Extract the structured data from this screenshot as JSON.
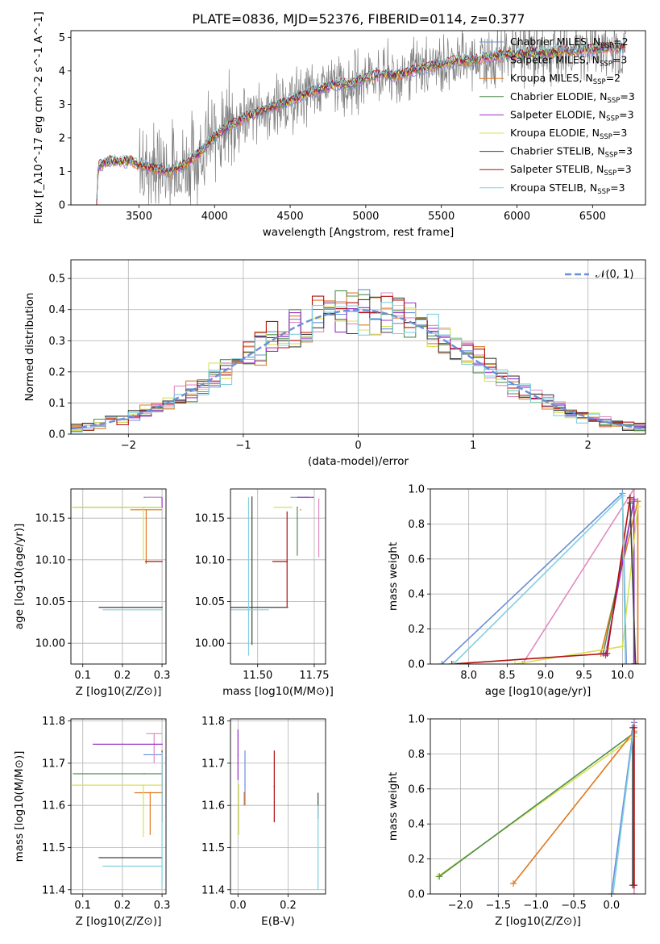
{
  "figure_title": "PLATE=0836, MJD=52376, FIBERID=0114, z=0.377",
  "palette": {
    "Chabrier MILES": "#6a8fd8",
    "Salpeter MILES": "#e08ac0",
    "Kroupa MILES": "#e07820",
    "Chabrier ELODIE": "#4f8f4f",
    "Salpeter ELODIE": "#9a30c8",
    "Kroupa ELODIE": "#d8e050",
    "Chabrier STELIB": "#404040",
    "Salpeter STELIB": "#b01010",
    "Kroupa STELIB": "#7fd0e0",
    "data": "#808080",
    "gaussian": "#6a8fd8",
    "grid": "#b0b0b0"
  },
  "chart_data": [
    {
      "id": "spectrum",
      "type": "line",
      "xlabel": "wavelength [Angstrom, rest frame]",
      "ylabel": "Flux [f_λ10^-17 erg cm^-2 s^-1 A^-1]",
      "xlim": [
        3050,
        6850
      ],
      "ylim": [
        0,
        5.2
      ],
      "xticks": [
        3500,
        4000,
        4500,
        5000,
        5500,
        6000,
        6500
      ],
      "yticks": [
        0,
        1,
        2,
        3,
        4,
        5
      ],
      "grid": false,
      "legend_position": "top-right",
      "data_x_range": [
        3220,
        6720
      ],
      "model_envelope": {
        "x": [
          3220,
          3230,
          3300,
          3450,
          3500,
          3600,
          3700,
          3800,
          3900,
          4000,
          4100,
          4200,
          4300,
          4400,
          4500,
          4600,
          4700,
          4800,
          4900,
          5000,
          5100,
          5200,
          5300,
          5400,
          5500,
          5600,
          5700,
          5800,
          5900,
          6000,
          6100,
          6200,
          6300,
          6400,
          6500,
          6600,
          6720
        ],
        "y": [
          0,
          1.15,
          1.3,
          1.3,
          1.2,
          1.1,
          1.0,
          1.2,
          1.55,
          2.05,
          2.35,
          2.6,
          2.8,
          2.95,
          3.1,
          3.3,
          3.45,
          3.6,
          3.6,
          3.8,
          3.9,
          3.85,
          4.0,
          4.1,
          4.2,
          4.3,
          4.3,
          4.4,
          4.45,
          4.5,
          4.55,
          4.55,
          4.6,
          4.6,
          4.65,
          4.7,
          4.7
        ]
      },
      "legend": [
        {
          "label": "Chabrier MILES",
          "nssp": "2"
        },
        {
          "label": "Salpeter MILES",
          "nssp": "3"
        },
        {
          "label": "Kroupa MILES",
          "nssp": "2"
        },
        {
          "label": "Chabrier ELODIE",
          "nssp": "3"
        },
        {
          "label": "Salpeter ELODIE",
          "nssp": "3"
        },
        {
          "label": "Kroupa ELODIE",
          "nssp": "3"
        },
        {
          "label": "Chabrier STELIB",
          "nssp": "3"
        },
        {
          "label": "Salpeter STELIB",
          "nssp": "3"
        },
        {
          "label": "Kroupa STELIB",
          "nssp": "3"
        }
      ]
    },
    {
      "id": "residuals",
      "type": "histogram",
      "xlabel": "(data-model)/error",
      "ylabel": "Normed distribution",
      "xlim": [
        -2.5,
        2.5
      ],
      "ylim": [
        0,
        0.56
      ],
      "xticks": [
        -2,
        -1,
        0,
        1,
        2
      ],
      "yticks": [
        0.0,
        0.1,
        0.2,
        0.3,
        0.4,
        0.5
      ],
      "grid": true,
      "legend_position": "top-right",
      "gaussian_label": "𝒩(0, 1)",
      "bin_width": 0.1
    },
    {
      "id": "age-vs-Z",
      "type": "errorbar",
      "xlabel": "Z [log10(Z/Z⊙)]",
      "ylabel": "age [log10(age/yr)]",
      "xlim": [
        0.07,
        0.31
      ],
      "ylim": [
        9.975,
        10.185
      ],
      "xticks": [
        0.1,
        0.2,
        0.3
      ],
      "yticks": [
        10.0,
        10.05,
        10.1,
        10.15
      ],
      "grid": true,
      "points": [
        {
          "model": "Chabrier MILES",
          "x": 0.255,
          "y": 10.175,
          "xerr": [
            0.0,
            0.045
          ],
          "yerr": [
            0.0,
            0.0
          ]
        },
        {
          "model": "Salpeter MILES",
          "x": 0.28,
          "y": 10.175,
          "xerr": [
            0.02,
            0.02
          ],
          "yerr": [
            0.0,
            0.0
          ]
        },
        {
          "model": "Kroupa MILES",
          "x": 0.26,
          "y": 10.16,
          "xerr": [
            0.04,
            0.04
          ],
          "yerr": [
            0.065,
            0.0
          ]
        },
        {
          "model": "Chabrier ELODIE",
          "x": 0.255,
          "y": 10.163,
          "xerr": [
            0.18,
            0.045
          ],
          "yerr": [
            0.0,
            0.0
          ]
        },
        {
          "model": "Salpeter ELODIE",
          "x": 0.3,
          "y": 10.163,
          "xerr": [
            0.0,
            0.0
          ],
          "yerr": [
            0.0,
            0.012
          ]
        },
        {
          "model": "Kroupa ELODIE",
          "x": 0.253,
          "y": 10.163,
          "xerr": [
            0.18,
            0.047
          ],
          "yerr": [
            0.063,
            0.0
          ]
        },
        {
          "model": "Chabrier STELIB",
          "x": 0.3,
          "y": 10.043,
          "xerr": [
            0.16,
            0.0
          ],
          "yerr": [
            0.0,
            0.0
          ]
        },
        {
          "model": "Salpeter STELIB",
          "x": 0.3,
          "y": 10.098,
          "xerr": [
            0.043,
            0.0
          ],
          "yerr": [
            0.0,
            0.0
          ]
        },
        {
          "model": "Kroupa STELIB",
          "x": 0.3,
          "y": 10.04,
          "xerr": [
            0.15,
            0.0
          ],
          "yerr": [
            0.0,
            0.0
          ]
        }
      ]
    },
    {
      "id": "age-vs-mass",
      "type": "errorbar",
      "xlabel": "mass [log10(M/M⊙)]",
      "ylabel": "",
      "xlim": [
        11.38,
        11.8
      ],
      "ylim": [
        9.975,
        10.185
      ],
      "xticks": [
        11.5,
        11.75
      ],
      "yticks": [
        10.0,
        10.05,
        10.1,
        10.15
      ],
      "grid": true,
      "points": [
        {
          "model": "Chabrier MILES",
          "x": 11.725,
          "y": 10.175,
          "xerr": [
            0.08,
            0.0
          ],
          "yerr": [
            0.0,
            0.0
          ]
        },
        {
          "model": "Salpeter MILES",
          "x": 11.77,
          "y": 10.173,
          "xerr": [
            0.0,
            0.0
          ],
          "yerr": [
            0.07,
            0.0
          ]
        },
        {
          "model": "Kroupa MILES",
          "x": 11.69,
          "y": 10.16,
          "xerr": [
            0.0,
            0.0
          ],
          "yerr": [
            0.0,
            0.0
          ]
        },
        {
          "model": "Chabrier ELODIE",
          "x": 11.675,
          "y": 10.163,
          "xerr": [
            0.0,
            0.0
          ],
          "yerr": [
            0.058,
            0.0
          ]
        },
        {
          "model": "Salpeter ELODIE",
          "x": 11.745,
          "y": 10.175,
          "xerr": [
            0.07,
            0.0
          ],
          "yerr": [
            0.0,
            0.0
          ]
        },
        {
          "model": "Kroupa ELODIE",
          "x": 11.65,
          "y": 10.163,
          "xerr": [
            0.08,
            0.0
          ],
          "yerr": [
            0.0,
            0.0
          ]
        },
        {
          "model": "Chabrier STELIB",
          "x": 11.475,
          "y": 10.043,
          "xerr": [
            0.095,
            0.16
          ],
          "yerr": [
            0.045,
            0.133
          ]
        },
        {
          "model": "Salpeter STELIB",
          "x": 11.63,
          "y": 10.098,
          "xerr": [
            0.065,
            0.0
          ],
          "yerr": [
            0.055,
            0.06
          ]
        },
        {
          "model": "Kroupa STELIB",
          "x": 11.46,
          "y": 10.04,
          "xerr": [
            0.09,
            0.09
          ],
          "yerr": [
            0.055,
            0.135
          ]
        }
      ]
    },
    {
      "id": "weight-vs-age",
      "type": "line",
      "xlabel": "age [log10(age/yr)]",
      "ylabel": "mass weight",
      "xlim": [
        7.5,
        10.3
      ],
      "ylim": [
        0,
        1.0
      ],
      "xticks": [
        8.0,
        8.5,
        9.0,
        9.5,
        10.0
      ],
      "yticks": [
        0.0,
        0.2,
        0.4,
        0.6,
        0.8,
        1.0
      ],
      "grid": true,
      "series": [
        {
          "model": "Chabrier MILES",
          "x": [
            7.65,
            10.0,
            10.05
          ],
          "y": [
            0.0,
            0.975,
            0.0
          ]
        },
        {
          "model": "Salpeter MILES",
          "x": [
            8.7,
            10.15,
            10.15
          ],
          "y": [
            0.0,
            1.0,
            0.0
          ]
        },
        {
          "model": "Kroupa MILES",
          "x": [
            9.72,
            10.2,
            10.2
          ],
          "y": [
            0.06,
            0.93,
            0.0
          ]
        },
        {
          "model": "Chabrier ELODIE",
          "x": [
            9.75,
            10.15,
            10.15
          ],
          "y": [
            0.06,
            0.93,
            0.0
          ]
        },
        {
          "model": "Salpeter ELODIE",
          "x": [
            9.78,
            10.15,
            10.15
          ],
          "y": [
            0.05,
            0.94,
            0.0
          ]
        },
        {
          "model": "Kroupa ELODIE",
          "x": [
            8.6,
            10.0,
            10.2
          ],
          "y": [
            0.0,
            0.1,
            0.9
          ]
        },
        {
          "model": "Chabrier STELIB",
          "x": [
            10.1,
            10.17,
            10.17
          ],
          "y": [
            0.92,
            0.0,
            0.0
          ]
        },
        {
          "model": "Salpeter STELIB",
          "x": [
            7.78,
            9.8,
            10.1
          ],
          "y": [
            0.0,
            0.06,
            0.95
          ]
        },
        {
          "model": "Kroupa STELIB",
          "x": [
            7.8,
            10.0,
            10.04
          ],
          "y": [
            0.0,
            0.96,
            0.0
          ]
        }
      ]
    },
    {
      "id": "mass-vs-Z",
      "type": "errorbar",
      "xlabel": "Z [log10(Z/Z⊙)]",
      "ylabel": "mass [log10(M/M⊙)]",
      "xlim": [
        0.07,
        0.31
      ],
      "ylim": [
        11.39,
        11.805
      ],
      "xticks": [
        0.1,
        0.2,
        0.3
      ],
      "yticks": [
        11.4,
        11.5,
        11.6,
        11.7,
        11.8
      ],
      "grid": true,
      "points": [
        {
          "model": "Chabrier MILES",
          "x": 0.255,
          "y": 11.72,
          "xerr": [
            0.0,
            0.045
          ],
          "yerr": [
            0.0,
            0.0
          ]
        },
        {
          "model": "Salpeter MILES",
          "x": 0.28,
          "y": 11.77,
          "xerr": [
            0.02,
            0.02
          ],
          "yerr": [
            0.07,
            0.0
          ]
        },
        {
          "model": "Kroupa MILES",
          "x": 0.27,
          "y": 11.63,
          "xerr": [
            0.04,
            0.03
          ],
          "yerr": [
            0.1,
            0.0
          ]
        },
        {
          "model": "Chabrier ELODIE",
          "x": 0.255,
          "y": 11.675,
          "xerr": [
            0.18,
            0.045
          ],
          "yerr": [
            0.0,
            0.0
          ]
        },
        {
          "model": "Salpeter ELODIE",
          "x": 0.3,
          "y": 11.745,
          "xerr": [
            0.175,
            0.0
          ],
          "yerr": [
            0.0,
            0.0
          ]
        },
        {
          "model": "Kroupa ELODIE",
          "x": 0.253,
          "y": 11.648,
          "xerr": [
            0.18,
            0.047
          ],
          "yerr": [
            0.123,
            0.0
          ]
        },
        {
          "model": "Chabrier STELIB",
          "x": 0.3,
          "y": 11.476,
          "xerr": [
            0.16,
            0.0
          ],
          "yerr": [
            0.0,
            0.0
          ]
        },
        {
          "model": "Salpeter STELIB",
          "x": 0.3,
          "y": 11.63,
          "xerr": [
            0.0,
            0.0
          ],
          "yerr": [
            0.07,
            0.1
          ]
        },
        {
          "model": "Kroupa STELIB",
          "x": 0.3,
          "y": 11.456,
          "xerr": [
            0.15,
            0.0
          ],
          "yerr": [
            0.05,
            0.27
          ]
        }
      ]
    },
    {
      "id": "mass-vs-EBV",
      "type": "errorbar",
      "xlabel": "E(B-V)",
      "ylabel": "",
      "xlim": [
        -0.03,
        0.35
      ],
      "ylim": [
        11.39,
        11.805
      ],
      "xticks": [
        0.0,
        0.2
      ],
      "yticks": [
        11.4,
        11.5,
        11.6,
        11.7,
        11.8
      ],
      "grid": true,
      "points": [
        {
          "model": "Chabrier MILES",
          "x": 0.028,
          "y": 11.65,
          "xerr": [
            0.0,
            0.0
          ],
          "yerr": [
            0.05,
            0.08
          ]
        },
        {
          "model": "Salpeter ELODIE",
          "x": 0.0,
          "y": 11.72,
          "xerr": [
            0.0,
            0.0
          ],
          "yerr": [
            0.06,
            0.06
          ]
        },
        {
          "model": "Kroupa MILES",
          "x": 0.025,
          "y": 11.63,
          "xerr": [
            0.0,
            0.0
          ],
          "yerr": [
            0.03,
            0.0
          ]
        },
        {
          "model": "Kroupa ELODIE",
          "x": 0.003,
          "y": 11.6,
          "xerr": [
            0.0,
            0.0
          ],
          "yerr": [
            0.07,
            0.05
          ]
        },
        {
          "model": "Salpeter STELIB",
          "x": 0.145,
          "y": 11.645,
          "xerr": [
            0.0,
            0.0
          ],
          "yerr": [
            0.085,
            0.085
          ]
        },
        {
          "model": "Chabrier STELIB",
          "x": 0.32,
          "y": 11.57,
          "xerr": [
            0.0,
            0.0
          ],
          "yerr": [
            0.0,
            0.06
          ]
        },
        {
          "model": "Kroupa STELIB",
          "x": 0.32,
          "y": 11.5,
          "xerr": [
            0.0,
            0.0
          ],
          "yerr": [
            0.1,
            0.1
          ]
        }
      ]
    },
    {
      "id": "weight-vs-Z",
      "type": "line",
      "xlabel": "Z [log10(Z/Z⊙)]",
      "ylabel": "mass weight",
      "xlim": [
        -2.4,
        0.45
      ],
      "ylim": [
        0,
        1.0
      ],
      "xticks": [
        -2.0,
        -1.5,
        -1.0,
        -0.5,
        0.0
      ],
      "yticks": [
        0.0,
        0.2,
        0.4,
        0.6,
        0.8,
        1.0
      ],
      "grid": true,
      "series": [
        {
          "model": "Kroupa ELODIE",
          "x": [
            -2.3,
            0.3
          ],
          "y": [
            0.1,
            0.9
          ]
        },
        {
          "model": "Chabrier ELODIE",
          "x": [
            -2.28,
            0.3
          ],
          "y": [
            0.1,
            0.92
          ]
        },
        {
          "model": "Kroupa MILES",
          "x": [
            -1.3,
            0.3
          ],
          "y": [
            0.06,
            0.93
          ]
        },
        {
          "model": "Chabrier STELIB",
          "x": [
            0.28,
            0.28
          ],
          "y": [
            0.05,
            0.95
          ]
        },
        {
          "model": "Chabrier MILES",
          "x": [
            0.0,
            0.3
          ],
          "y": [
            0.0,
            0.98
          ]
        },
        {
          "model": "Kroupa STELIB",
          "x": [
            0.02,
            0.3
          ],
          "y": [
            0.0,
            0.96
          ]
        },
        {
          "model": "Salpeter MILES",
          "x": [
            0.3,
            0.3
          ],
          "y": [
            0.0,
            1.0
          ]
        },
        {
          "model": "Salpeter STELIB",
          "x": [
            0.3,
            0.3
          ],
          "y": [
            0.05,
            0.95
          ]
        }
      ]
    }
  ]
}
